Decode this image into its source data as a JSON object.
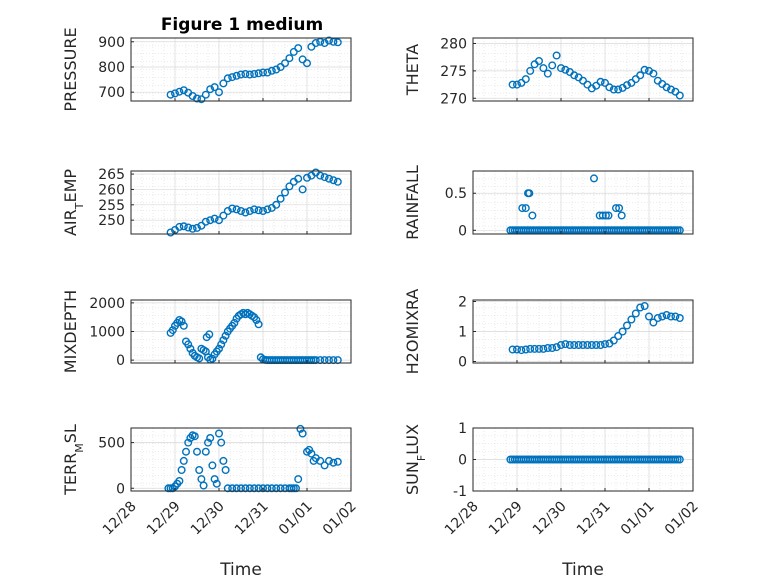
{
  "figure_title": "Figure 1 medium",
  "colors": {
    "marker": "#0072BD",
    "axis": "#262626",
    "grid": "#d9d9d9"
  },
  "chart_data": [
    {
      "type": "scatter",
      "ylabel": "PRESSURE",
      "ylim": [
        665,
        915
      ],
      "yticks": [
        700,
        800,
        900
      ],
      "xlim": [
        0,
        5
      ],
      "xticks": [],
      "x": [
        0.9,
        1.0,
        1.1,
        1.2,
        1.3,
        1.4,
        1.5,
        1.6,
        1.7,
        1.8,
        1.9,
        2.0,
        2.1,
        2.2,
        2.3,
        2.4,
        2.5,
        2.6,
        2.7,
        2.8,
        2.9,
        3.0,
        3.1,
        3.2,
        3.3,
        3.4,
        3.5,
        3.6,
        3.7,
        3.8,
        3.9,
        4.0,
        4.1,
        4.2,
        4.3,
        4.4,
        4.5,
        4.6,
        4.7
      ],
      "y": [
        690,
        695,
        702,
        708,
        698,
        685,
        675,
        672,
        690,
        712,
        720,
        700,
        735,
        755,
        760,
        765,
        770,
        772,
        770,
        772,
        775,
        778,
        778,
        785,
        790,
        800,
        815,
        835,
        860,
        875,
        830,
        815,
        880,
        895,
        900,
        895,
        905,
        900,
        898
      ]
    },
    {
      "type": "scatter",
      "ylabel": "THETA",
      "ylim": [
        269.5,
        281
      ],
      "yticks": [
        270,
        275,
        280
      ],
      "xlim": [
        0,
        5
      ],
      "xticks": [],
      "x": [
        0.9,
        1.0,
        1.1,
        1.2,
        1.3,
        1.4,
        1.5,
        1.6,
        1.7,
        1.8,
        1.9,
        2.0,
        2.1,
        2.2,
        2.3,
        2.4,
        2.5,
        2.6,
        2.7,
        2.8,
        2.9,
        3.0,
        3.1,
        3.2,
        3.3,
        3.4,
        3.5,
        3.6,
        3.7,
        3.8,
        3.9,
        4.0,
        4.1,
        4.2,
        4.3,
        4.4,
        4.5,
        4.6,
        4.7
      ],
      "y": [
        272.5,
        272.5,
        272.8,
        273.5,
        275,
        276.2,
        276.8,
        275.5,
        274.5,
        276,
        277.8,
        275.5,
        275.2,
        274.8,
        274.2,
        273.8,
        273.2,
        272.5,
        271.8,
        272.3,
        273,
        272.8,
        272,
        271.6,
        271.6,
        271.9,
        272.4,
        272.8,
        273.5,
        274.2,
        275.2,
        275,
        274.5,
        273.2,
        272.6,
        272,
        271.6,
        271.2,
        270.5
      ]
    },
    {
      "type": "scatter",
      "ylabel": "AIR_TEMP",
      "ylim": [
        245.5,
        266
      ],
      "yticks": [
        250,
        255,
        260,
        265
      ],
      "ytick_labels": [
        "250",
        "255",
        "260",
        "265"
      ],
      "xlim": [
        0,
        5
      ],
      "xticks": [],
      "x": [
        0.9,
        1.0,
        1.1,
        1.2,
        1.3,
        1.4,
        1.5,
        1.6,
        1.7,
        1.8,
        1.9,
        2.0,
        2.1,
        2.2,
        2.3,
        2.4,
        2.5,
        2.6,
        2.7,
        2.8,
        2.9,
        3.0,
        3.1,
        3.2,
        3.3,
        3.4,
        3.5,
        3.6,
        3.7,
        3.8,
        3.9,
        4.0,
        4.1,
        4.2,
        4.3,
        4.4,
        4.5,
        4.6,
        4.7
      ],
      "y": [
        246,
        246.8,
        247.8,
        248,
        247.6,
        247.2,
        247.5,
        248.2,
        249.5,
        250,
        250.5,
        250,
        251.5,
        253,
        253.8,
        253.5,
        253,
        252.5,
        253,
        253.5,
        253.2,
        253,
        253.5,
        254,
        255,
        257,
        259,
        261,
        262.5,
        263.5,
        260,
        263.8,
        264.5,
        265.5,
        264.5,
        264,
        263.5,
        263,
        262.5
      ]
    },
    {
      "type": "scatter",
      "ylabel": "RAINFALL",
      "ylim": [
        -0.05,
        0.8
      ],
      "yticks": [
        0,
        0.5
      ],
      "ytick_labels": [
        "0",
        "0.5"
      ],
      "xlim": [
        0,
        5
      ],
      "xticks": [],
      "x": [
        0.85,
        0.9,
        0.95,
        1.0,
        1.05,
        1.1,
        1.15,
        1.2,
        1.25,
        1.3,
        1.35,
        1.4,
        1.45,
        1.5,
        1.55,
        1.6,
        1.65,
        1.7,
        1.75,
        1.8,
        1.85,
        1.9,
        1.95,
        2.0,
        2.05,
        2.1,
        2.15,
        2.2,
        2.25,
        2.3,
        2.35,
        2.4,
        2.45,
        2.5,
        2.55,
        2.6,
        2.65,
        2.7,
        2.75,
        2.8,
        2.85,
        2.9,
        2.95,
        3.0,
        3.05,
        3.1,
        3.15,
        3.2,
        3.25,
        3.3,
        3.35,
        3.4,
        3.45,
        3.5,
        3.55,
        3.6,
        3.65,
        3.7,
        3.75,
        3.8,
        3.85,
        3.9,
        3.95,
        4.0,
        4.05,
        4.1,
        4.15,
        4.2,
        4.25,
        4.3,
        4.35,
        4.4,
        4.45,
        4.5,
        4.55,
        4.6,
        4.65,
        4.7,
        1.12,
        1.2,
        1.25,
        1.28,
        1.35,
        2.75,
        2.88,
        2.95,
        3.02,
        3.08,
        3.25,
        3.32,
        3.38
      ],
      "y": [
        0,
        0,
        0,
        0,
        0,
        0,
        0,
        0,
        0,
        0,
        0,
        0,
        0,
        0,
        0,
        0,
        0,
        0,
        0,
        0,
        0,
        0,
        0,
        0,
        0,
        0,
        0,
        0,
        0,
        0,
        0,
        0,
        0,
        0,
        0,
        0,
        0,
        0,
        0,
        0,
        0,
        0,
        0,
        0,
        0,
        0,
        0,
        0,
        0,
        0,
        0,
        0,
        0,
        0,
        0,
        0,
        0,
        0,
        0,
        0,
        0,
        0,
        0,
        0,
        0,
        0,
        0,
        0,
        0,
        0,
        0,
        0,
        0,
        0,
        0,
        0,
        0,
        0,
        0.3,
        0.3,
        0.5,
        0.5,
        0.2,
        0.7,
        0.2,
        0.2,
        0.2,
        0.2,
        0.3,
        0.3,
        0.2
      ]
    },
    {
      "type": "scatter",
      "ylabel": "MIXDEPTH",
      "ylim": [
        -100,
        2100
      ],
      "yticks": [
        0,
        1000,
        2000
      ],
      "xlim": [
        0,
        5
      ],
      "xticks": [],
      "x": [
        0.9,
        0.95,
        1.0,
        1.05,
        1.1,
        1.15,
        1.2,
        1.25,
        1.3,
        1.35,
        1.4,
        1.45,
        1.5,
        1.55,
        1.6,
        1.65,
        1.7,
        1.75,
        1.8,
        1.85,
        1.9,
        1.95,
        2.0,
        2.05,
        2.1,
        2.15,
        2.2,
        2.25,
        2.3,
        2.35,
        2.4,
        2.45,
        2.5,
        2.55,
        2.6,
        2.65,
        2.7,
        2.75,
        2.8,
        2.85,
        2.9,
        2.95,
        3.0,
        3.05,
        3.1,
        3.15,
        3.2,
        3.25,
        3.3,
        3.35,
        3.4,
        3.45,
        3.5,
        3.55,
        3.6,
        3.65,
        3.7,
        3.75,
        3.8,
        3.85,
        3.9,
        3.95,
        4.0,
        4.05,
        4.1,
        4.15,
        4.2,
        4.3,
        4.4,
        4.5,
        4.6,
        4.7,
        1.72,
        1.78
      ],
      "y": [
        950,
        1050,
        1200,
        1300,
        1400,
        1350,
        1200,
        650,
        550,
        400,
        250,
        150,
        100,
        60,
        400,
        350,
        300,
        100,
        20,
        50,
        200,
        300,
        400,
        550,
        700,
        850,
        1000,
        1100,
        1200,
        1300,
        1450,
        1550,
        1600,
        1650,
        1600,
        1650,
        1600,
        1550,
        1500,
        1400,
        1250,
        100,
        30,
        10,
        0,
        0,
        0,
        0,
        0,
        0,
        0,
        0,
        0,
        0,
        0,
        0,
        0,
        0,
        0,
        0,
        0,
        0,
        0,
        0,
        0,
        0,
        0,
        0,
        0,
        0,
        0,
        0,
        800,
        900
      ]
    },
    {
      "type": "scatter",
      "ylabel": "H2OMIXRA",
      "ylim": [
        -0.05,
        2.05
      ],
      "yticks": [
        0,
        1,
        2
      ],
      "xlim": [
        0,
        5
      ],
      "xticks": [],
      "x": [
        0.9,
        1.0,
        1.1,
        1.2,
        1.3,
        1.4,
        1.5,
        1.6,
        1.7,
        1.8,
        1.9,
        2.0,
        2.1,
        2.2,
        2.3,
        2.4,
        2.5,
        2.6,
        2.7,
        2.8,
        2.9,
        3.0,
        3.1,
        3.2,
        3.3,
        3.4,
        3.5,
        3.6,
        3.7,
        3.8,
        3.9,
        4.0,
        4.1,
        4.2,
        4.3,
        4.4,
        4.5,
        4.6,
        4.7
      ],
      "y": [
        0.4,
        0.4,
        0.38,
        0.4,
        0.42,
        0.42,
        0.42,
        0.42,
        0.45,
        0.45,
        0.48,
        0.55,
        0.58,
        0.55,
        0.55,
        0.55,
        0.55,
        0.55,
        0.55,
        0.55,
        0.55,
        0.58,
        0.6,
        0.7,
        0.85,
        1.0,
        1.2,
        1.4,
        1.6,
        1.8,
        1.85,
        1.5,
        1.3,
        1.45,
        1.5,
        1.55,
        1.5,
        1.5,
        1.45
      ]
    },
    {
      "type": "scatter",
      "ylabel": "TERR_MSL",
      "ylim": [
        -30,
        660
      ],
      "yticks": [
        0,
        500
      ],
      "xlim": [
        0,
        5
      ],
      "xticks": [
        0,
        1,
        2,
        3,
        4,
        5
      ],
      "xtick_labels": [
        "12/28",
        "12/29",
        "12/30",
        "12/31",
        "01/01",
        "01/02"
      ],
      "xlabel": "Time",
      "x": [
        0.85,
        0.9,
        0.95,
        1.0,
        1.05,
        1.1,
        1.15,
        1.2,
        1.25,
        1.3,
        1.35,
        1.4,
        1.45,
        1.5,
        1.55,
        1.6,
        1.65,
        1.7,
        1.75,
        1.8,
        1.85,
        1.9,
        1.95,
        2.0,
        2.05,
        2.1,
        2.15,
        2.2,
        2.3,
        2.4,
        2.5,
        2.6,
        2.7,
        2.8,
        2.9,
        3.0,
        3.1,
        3.2,
        3.3,
        3.4,
        3.5,
        3.6,
        3.65,
        3.7,
        3.75,
        3.8,
        3.85,
        3.9,
        4.0,
        4.05,
        4.1,
        4.15,
        4.2,
        4.3,
        4.4,
        4.5,
        4.6,
        4.7
      ],
      "y": [
        0,
        0,
        0,
        20,
        50,
        80,
        200,
        300,
        400,
        500,
        550,
        580,
        570,
        400,
        200,
        100,
        30,
        400,
        500,
        550,
        250,
        100,
        50,
        600,
        500,
        300,
        200,
        0,
        0,
        0,
        0,
        0,
        0,
        0,
        0,
        0,
        0,
        0,
        0,
        0,
        0,
        0,
        0,
        0,
        0,
        100,
        650,
        600,
        400,
        420,
        380,
        300,
        330,
        300,
        250,
        300,
        280,
        290
      ]
    },
    {
      "type": "scatter",
      "ylabel": "SUN_FLUX",
      "ylim": [
        -1,
        1
      ],
      "yticks": [
        -1,
        0,
        1
      ],
      "xlim": [
        0,
        5
      ],
      "xticks": [
        0,
        1,
        2,
        3,
        4,
        5
      ],
      "xtick_labels": [
        "12/28",
        "12/29",
        "12/30",
        "12/31",
        "01/01",
        "01/02"
      ],
      "xlabel": "Time",
      "x": [
        0.85,
        0.9,
        0.95,
        1.0,
        1.05,
        1.1,
        1.15,
        1.2,
        1.25,
        1.3,
        1.35,
        1.4,
        1.45,
        1.5,
        1.55,
        1.6,
        1.65,
        1.7,
        1.75,
        1.8,
        1.85,
        1.9,
        1.95,
        2.0,
        2.05,
        2.1,
        2.15,
        2.2,
        2.25,
        2.3,
        2.35,
        2.4,
        2.45,
        2.5,
        2.55,
        2.6,
        2.65,
        2.7,
        2.75,
        2.8,
        2.85,
        2.9,
        2.95,
        3.0,
        3.05,
        3.1,
        3.15,
        3.2,
        3.25,
        3.3,
        3.35,
        3.4,
        3.45,
        3.5,
        3.55,
        3.6,
        3.65,
        3.7,
        3.75,
        3.8,
        3.85,
        3.9,
        3.95,
        4.0,
        4.05,
        4.1,
        4.15,
        4.2,
        4.25,
        4.3,
        4.35,
        4.4,
        4.45,
        4.5,
        4.55,
        4.6,
        4.65,
        4.7
      ],
      "y": [
        0,
        0,
        0,
        0,
        0,
        0,
        0,
        0,
        0,
        0,
        0,
        0,
        0,
        0,
        0,
        0,
        0,
        0,
        0,
        0,
        0,
        0,
        0,
        0,
        0,
        0,
        0,
        0,
        0,
        0,
        0,
        0,
        0,
        0,
        0,
        0,
        0,
        0,
        0,
        0,
        0,
        0,
        0,
        0,
        0,
        0,
        0,
        0,
        0,
        0,
        0,
        0,
        0,
        0,
        0,
        0,
        0,
        0,
        0,
        0,
        0,
        0,
        0,
        0,
        0,
        0,
        0,
        0,
        0,
        0,
        0,
        0,
        0,
        0,
        0,
        0,
        0,
        0
      ]
    }
  ]
}
